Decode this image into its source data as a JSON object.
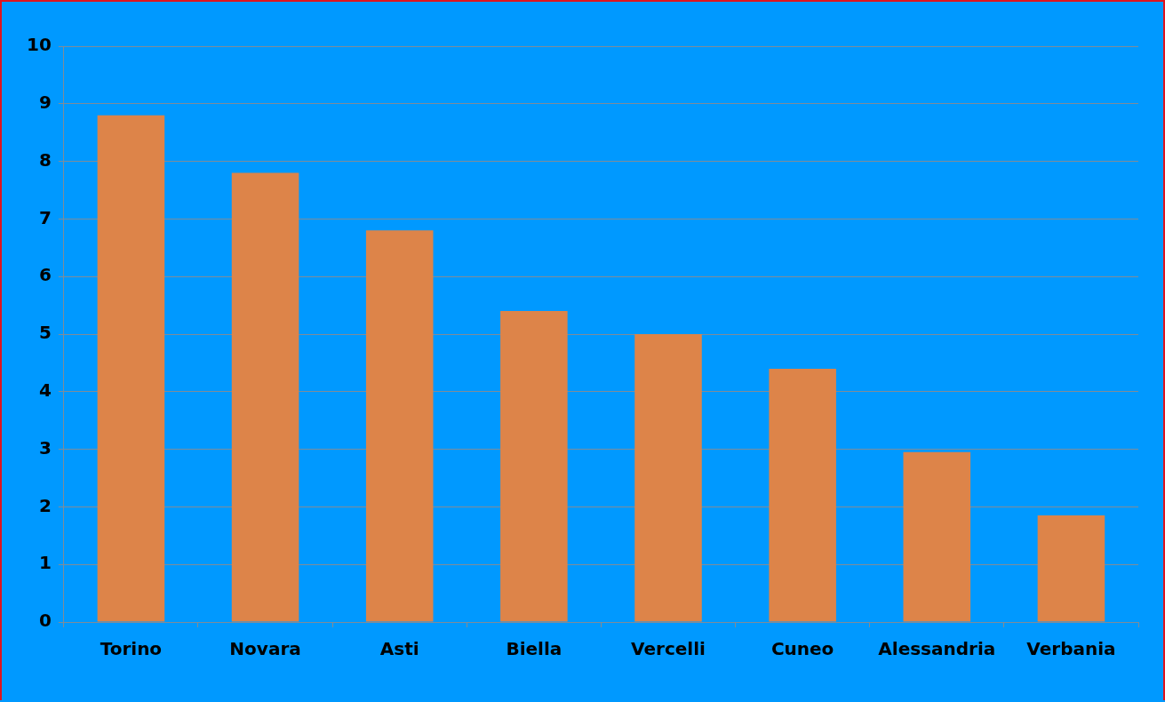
{
  "chart_data": {
    "type": "bar",
    "categories": [
      "Torino",
      "Novara",
      "Asti",
      "Biella",
      "Vercelli",
      "Cuneo",
      "Alessandria",
      "Verbania"
    ],
    "values": [
      8.8,
      7.8,
      6.8,
      5.4,
      5.0,
      4.4,
      2.95,
      1.85
    ],
    "color": "#dd8449",
    "ylim": [
      0,
      10
    ],
    "yticks": [
      0,
      1,
      2,
      3,
      4,
      5,
      6,
      7,
      8,
      9,
      10
    ],
    "grid": "y",
    "legend": false
  }
}
